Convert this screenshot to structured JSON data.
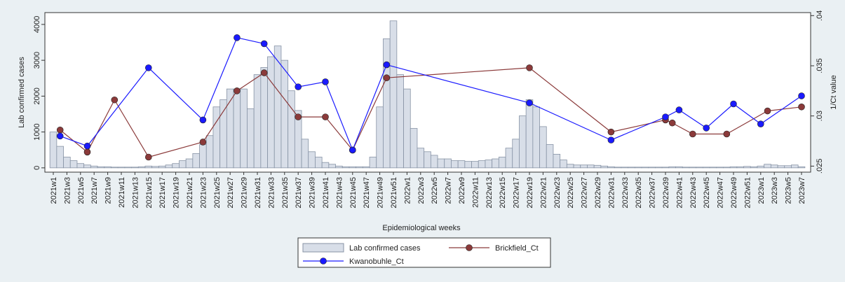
{
  "chart_data": {
    "type": "bar-line",
    "x_label": "Epidemiological weeks",
    "y_label": "Lab confirmed cases",
    "y2_label": "1/Ct value",
    "categories": [
      "2021w1",
      null,
      "2021w3",
      null,
      "2021w5",
      null,
      "2021w7",
      null,
      "2021w9",
      null,
      "2021w11",
      null,
      "2021w13",
      null,
      "2021w15",
      null,
      "2021w17",
      null,
      "2021w19",
      null,
      "2021w21",
      null,
      "2021w23",
      null,
      "2021w25",
      null,
      "2021w27",
      null,
      "2021w29",
      null,
      "2021w31",
      null,
      "2021w33",
      null,
      "2021w35",
      null,
      "2021w37",
      null,
      "2021w39",
      null,
      "2021w41",
      null,
      "2021w43",
      null,
      "2021w45",
      null,
      "2021w47",
      null,
      "2021w49",
      null,
      "2021w51",
      null,
      "2022w1",
      null,
      "2022w3",
      null,
      "2022w5",
      null,
      "2022w7",
      null,
      "2022w9",
      null,
      "2022w11",
      null,
      "2022w13",
      null,
      "2022w15",
      null,
      "2022w17",
      null,
      "2022w19",
      null,
      "2022w21",
      null,
      "2022w23",
      null,
      "2022w25",
      null,
      "2022w27",
      null,
      "2022w29",
      null,
      "2022w31",
      null,
      "2022w33",
      null,
      "2022w35",
      null,
      "2022w37",
      null,
      "2022w39",
      null,
      "2022w41",
      null,
      "2022w43",
      null,
      "2022w45",
      null,
      "2022w47",
      null,
      "2022w49",
      null,
      "2022w51",
      null,
      "2023w1",
      null,
      "2023w3",
      null,
      "2023w5",
      null,
      "2023w7"
    ],
    "series": [
      {
        "name": "Lab confirmed cases",
        "type": "bar",
        "color": "#d8dee8",
        "stroke": "#8793a5",
        "values": [
          1000,
          600,
          300,
          200,
          120,
          80,
          50,
          30,
          30,
          20,
          20,
          20,
          20,
          30,
          50,
          40,
          50,
          80,
          120,
          200,
          250,
          400,
          650,
          900,
          1700,
          1900,
          2200,
          2200,
          2200,
          1650,
          2600,
          2800,
          3100,
          3400,
          3000,
          2150,
          1600,
          800,
          450,
          300,
          150,
          100,
          50,
          30,
          30,
          30,
          30,
          300,
          1700,
          3600,
          4100,
          2600,
          2200,
          1100,
          550,
          450,
          350,
          250,
          250,
          200,
          200,
          180,
          180,
          200,
          220,
          250,
          300,
          550,
          800,
          1450,
          1900,
          1700,
          1150,
          650,
          380,
          220,
          100,
          80,
          80,
          80,
          70,
          50,
          30,
          20,
          20,
          20,
          20,
          20,
          20,
          20,
          20,
          30,
          30,
          20,
          20,
          20,
          20,
          20,
          20,
          20,
          30,
          30,
          40,
          30,
          50,
          100,
          80,
          60,
          60,
          80,
          30
        ]
      },
      {
        "name": "Brickfield_Ct",
        "type": "line",
        "axis": "y2",
        "color": "#8b3a3a",
        "values": [
          null,
          0.0286,
          null,
          null,
          null,
          0.0264,
          null,
          null,
          null,
          0.0316,
          null,
          null,
          null,
          null,
          0.0259,
          null,
          null,
          null,
          null,
          null,
          null,
          null,
          0.0274,
          null,
          null,
          null,
          null,
          0.0325,
          null,
          null,
          null,
          0.0343,
          null,
          null,
          null,
          null,
          0.0299,
          null,
          null,
          null,
          0.0299,
          null,
          null,
          null,
          0.0266,
          null,
          null,
          null,
          null,
          0.0338,
          null,
          null,
          null,
          null,
          null,
          null,
          null,
          null,
          null,
          null,
          null,
          null,
          null,
          null,
          null,
          null,
          null,
          null,
          null,
          null,
          0.0348,
          null,
          null,
          null,
          null,
          null,
          null,
          null,
          null,
          null,
          null,
          null,
          0.0284,
          null,
          null,
          null,
          null,
          null,
          null,
          null,
          0.0296,
          0.0293,
          null,
          null,
          0.0282,
          null,
          null,
          null,
          null,
          0.0282,
          null,
          null,
          null,
          null,
          null,
          0.0305,
          null,
          null,
          null,
          null,
          0.0309
        ]
      },
      {
        "name": "Kwanobuhle_Ct",
        "type": "line",
        "axis": "y2",
        "color": "#1a1aff",
        "values": [
          null,
          0.028,
          null,
          null,
          null,
          0.027,
          null,
          null,
          null,
          null,
          null,
          null,
          null,
          null,
          0.0348,
          null,
          null,
          null,
          null,
          null,
          null,
          null,
          0.0296,
          null,
          null,
          null,
          null,
          0.0378,
          null,
          null,
          null,
          0.0372,
          null,
          null,
          null,
          null,
          0.0329,
          null,
          null,
          null,
          0.0334,
          null,
          null,
          null,
          0.0266,
          null,
          null,
          null,
          null,
          0.0351,
          null,
          null,
          null,
          null,
          null,
          null,
          null,
          null,
          null,
          null,
          null,
          null,
          null,
          null,
          null,
          null,
          null,
          null,
          null,
          null,
          0.0313,
          null,
          null,
          null,
          null,
          null,
          null,
          null,
          null,
          null,
          null,
          null,
          0.0276,
          null,
          null,
          null,
          null,
          null,
          null,
          null,
          0.0299,
          null,
          0.0306,
          null,
          null,
          null,
          0.0288,
          null,
          null,
          null,
          0.0312,
          null,
          null,
          null,
          0.0292,
          null,
          null,
          null,
          null,
          null,
          0.032
        ]
      }
    ],
    "ylim": [
      -120,
      4330
    ],
    "yticks": [
      0,
      1000,
      2000,
      3000,
      4000
    ],
    "y2lim": [
      0.0244,
      0.0403
    ],
    "y2ticks": [
      {
        "value": 0.025,
        "label": ".025"
      },
      {
        "value": 0.03,
        "label": ".03"
      },
      {
        "value": 0.035,
        "label": ".035"
      },
      {
        "value": 0.04,
        "label": ".04"
      }
    ],
    "legend": "bottom"
  }
}
